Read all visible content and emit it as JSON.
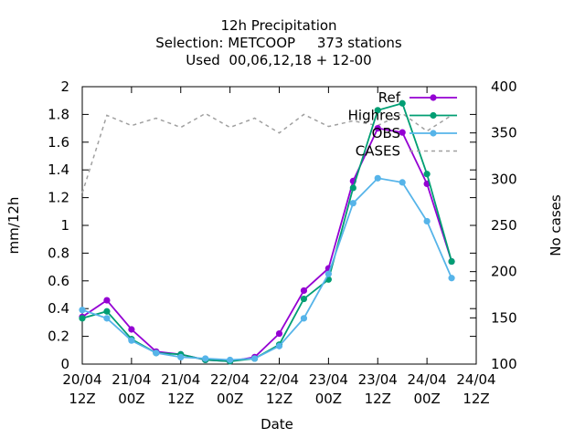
{
  "chart_data": {
    "type": "line",
    "title_lines": [
      "12h Precipitation",
      "Selection: METCOOP     373 stations",
      "Used  00,06,12,18 + 12-00"
    ],
    "xlabel": "Date",
    "ylabel": "mm/12h",
    "y2label": "No cases",
    "x_ticks": [
      {
        "line1": "20/04",
        "line2": "12Z"
      },
      {
        "line1": "21/04",
        "line2": "00Z"
      },
      {
        "line1": "21/04",
        "line2": "12Z"
      },
      {
        "line1": "22/04",
        "line2": "00Z"
      },
      {
        "line1": "22/04",
        "line2": "12Z"
      },
      {
        "line1": "23/04",
        "line2": "00Z"
      },
      {
        "line1": "23/04",
        "line2": "12Z"
      },
      {
        "line1": "24/04",
        "line2": "00Z"
      },
      {
        "line1": "24/04",
        "line2": "12Z"
      }
    ],
    "x_range_hours": [
      0,
      96
    ],
    "ylim": [
      0,
      2
    ],
    "y_ticks": [
      "0",
      "0.2",
      "0.4",
      "0.6",
      "0.8",
      "1",
      "1.2",
      "1.4",
      "1.6",
      "1.8",
      "2"
    ],
    "y2lim": [
      100,
      400
    ],
    "y2_ticks": [
      "100",
      "150",
      "200",
      "250",
      "300",
      "350",
      "400"
    ],
    "legend_position": "top-right",
    "series": [
      {
        "name": "Ref",
        "color": "#9400d3",
        "marker": "filled-circle",
        "axis": "y",
        "x": [
          0,
          6,
          12,
          18,
          24,
          30,
          36,
          42,
          48,
          54,
          60,
          66,
          72,
          78,
          84,
          90
        ],
        "y": [
          0.34,
          0.46,
          0.25,
          0.09,
          0.07,
          0.03,
          0.02,
          0.05,
          0.22,
          0.53,
          0.69,
          1.32,
          1.7,
          1.67,
          1.3,
          0.74
        ]
      },
      {
        "name": "Highres",
        "color": "#009e73",
        "marker": "filled-circle",
        "axis": "y",
        "x": [
          0,
          6,
          12,
          18,
          24,
          30,
          36,
          42,
          48,
          54,
          60,
          66,
          72,
          78,
          84,
          90
        ],
        "y": [
          0.33,
          0.38,
          0.18,
          0.08,
          0.07,
          0.03,
          0.02,
          0.04,
          0.14,
          0.47,
          0.61,
          1.27,
          1.83,
          1.88,
          1.37,
          0.74
        ]
      },
      {
        "name": "OBS",
        "color": "#56b4e9",
        "marker": "filled-circle",
        "axis": "y",
        "x": [
          0,
          6,
          12,
          18,
          24,
          30,
          36,
          42,
          48,
          54,
          60,
          66,
          72,
          78,
          84,
          90
        ],
        "y": [
          0.39,
          0.33,
          0.17,
          0.08,
          0.05,
          0.04,
          0.03,
          0.04,
          0.13,
          0.33,
          0.65,
          1.16,
          1.34,
          1.31,
          1.03,
          0.62
        ]
      },
      {
        "name": "CASES",
        "color": "#a0a0a0",
        "marker": "none",
        "dashed": true,
        "axis": "y2",
        "x": [
          0,
          6,
          12,
          18,
          24,
          30,
          36,
          42,
          48,
          54,
          60,
          66,
          72,
          78,
          84,
          90
        ],
        "y": [
          285,
          369,
          358,
          366,
          356,
          371,
          356,
          366,
          350,
          370,
          357,
          363,
          358,
          371,
          352,
          369
        ]
      }
    ]
  }
}
